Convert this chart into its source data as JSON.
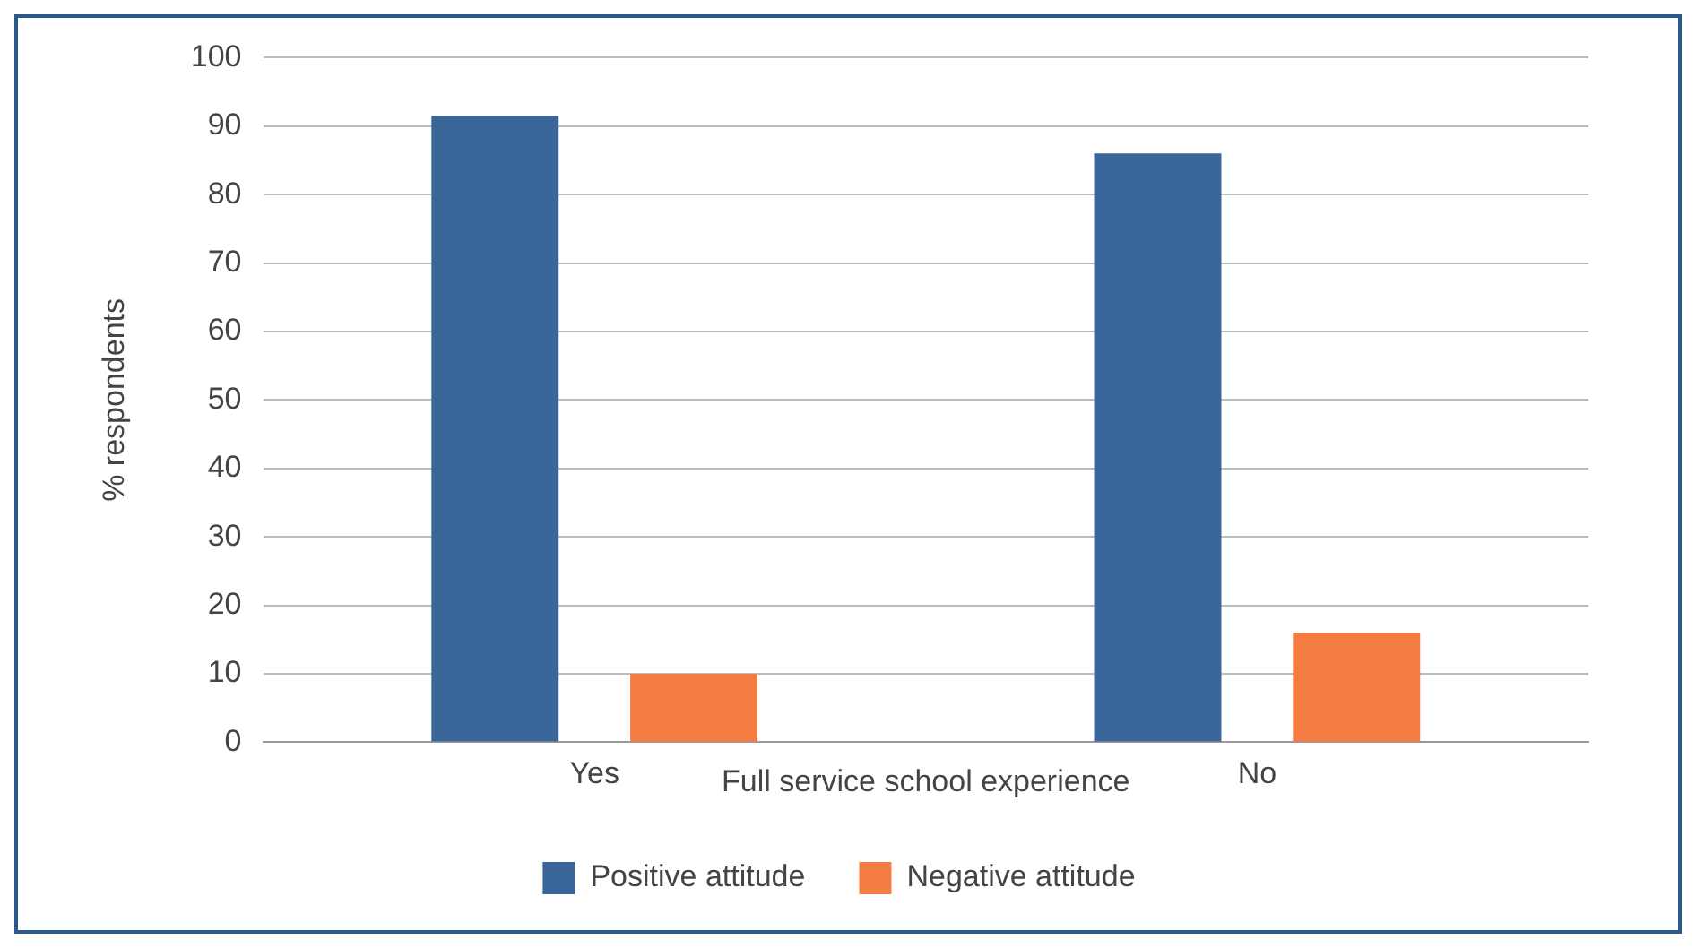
{
  "chart_data": {
    "type": "bar",
    "xlabel": "Full service school experience",
    "ylabel": "% respondents",
    "categories": [
      "Yes",
      "No"
    ],
    "series": [
      {
        "name": "Positive attitude",
        "color": "#3a6699",
        "values": [
          91.5,
          86
        ]
      },
      {
        "name": "Negative attitude",
        "color": "#f47b42",
        "values": [
          10,
          16
        ]
      }
    ],
    "ylim": [
      0,
      100
    ],
    "yticks": [
      0,
      10,
      20,
      30,
      40,
      50,
      60,
      70,
      80,
      90,
      100
    ],
    "grid": "y",
    "legend": "bottom"
  }
}
